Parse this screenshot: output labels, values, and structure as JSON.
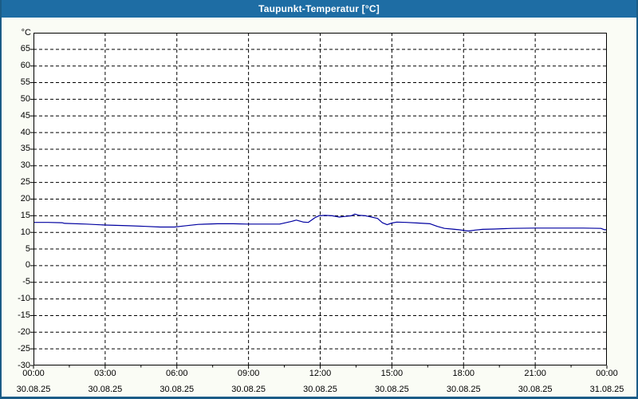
{
  "window": {
    "title": "Taupunkt-Temperatur [°C]"
  },
  "colors": {
    "titlebar": "#1E6DA4",
    "window_border": "#1B5C87",
    "page_background": "#FAFCF5",
    "plot_background": "#FFFFFF",
    "grid": "#000000",
    "series_line": "#0000A0",
    "title_text": "#FFFFFF",
    "axis_text": "#000000"
  },
  "chart_data": {
    "type": "line",
    "title": "Taupunkt-Temperatur [°C]",
    "ylabel": "°C",
    "ylim": [
      -30,
      70
    ],
    "y_tick_step": 5,
    "y_ticks": [
      65,
      60,
      55,
      50,
      45,
      40,
      35,
      30,
      25,
      20,
      15,
      10,
      5,
      0,
      -5,
      -10,
      -15,
      -20,
      -25,
      -30
    ],
    "grid": "dashed",
    "legend": "none",
    "x_axis": {
      "unit": "hours",
      "range_hours": [
        0,
        24
      ],
      "major_tick_hours": 3,
      "minor_tick_hours": 1.5,
      "ticks": [
        {
          "hours": 0,
          "time": "00:00",
          "date": "30.08.25"
        },
        {
          "hours": 3,
          "time": "03:00",
          "date": "30.08.25"
        },
        {
          "hours": 6,
          "time": "06:00",
          "date": "30.08.25"
        },
        {
          "hours": 9,
          "time": "09:00",
          "date": "30.08.25"
        },
        {
          "hours": 12,
          "time": "12:00",
          "date": "30.08.25"
        },
        {
          "hours": 15,
          "time": "15:00",
          "date": "30.08.25"
        },
        {
          "hours": 18,
          "time": "18:00",
          "date": "30.08.25"
        },
        {
          "hours": 21,
          "time": "21:00",
          "date": "30.08.25"
        },
        {
          "hours": 24,
          "time": "00:00",
          "date": "31.08.25"
        }
      ]
    },
    "series": [
      {
        "name": "Taupunkt-Temperatur",
        "unit": "°C",
        "color": "#0000A0",
        "points_hours_value": [
          [
            0.0,
            13.0
          ],
          [
            0.6,
            13.0
          ],
          [
            1.2,
            12.9
          ],
          [
            1.3,
            12.7
          ],
          [
            2.2,
            12.5
          ],
          [
            3.0,
            12.2
          ],
          [
            4.0,
            12.0
          ],
          [
            4.7,
            11.8
          ],
          [
            5.3,
            11.6
          ],
          [
            5.9,
            11.6
          ],
          [
            6.25,
            11.9
          ],
          [
            6.9,
            12.4
          ],
          [
            7.7,
            12.6
          ],
          [
            8.35,
            12.6
          ],
          [
            8.95,
            12.5
          ],
          [
            9.6,
            12.5
          ],
          [
            10.3,
            12.5
          ],
          [
            10.8,
            13.3
          ],
          [
            11.0,
            13.7
          ],
          [
            11.3,
            13.1
          ],
          [
            11.5,
            13.0
          ],
          [
            11.8,
            14.5
          ],
          [
            11.95,
            15.0
          ],
          [
            12.2,
            15.1
          ],
          [
            12.5,
            15.0
          ],
          [
            12.8,
            14.6
          ],
          [
            13.05,
            14.8
          ],
          [
            13.3,
            15.0
          ],
          [
            13.45,
            15.5
          ],
          [
            13.65,
            15.1
          ],
          [
            13.9,
            15.0
          ],
          [
            14.15,
            14.6
          ],
          [
            14.4,
            14.2
          ],
          [
            14.6,
            12.9
          ],
          [
            14.8,
            12.3
          ],
          [
            15.0,
            12.8
          ],
          [
            15.2,
            13.1
          ],
          [
            15.6,
            13.0
          ],
          [
            16.1,
            12.8
          ],
          [
            16.6,
            12.6
          ],
          [
            16.9,
            11.8
          ],
          [
            17.2,
            11.2
          ],
          [
            17.5,
            11.0
          ],
          [
            17.8,
            10.8
          ],
          [
            18.0,
            10.6
          ],
          [
            18.2,
            10.4
          ],
          [
            18.5,
            10.7
          ],
          [
            18.8,
            10.9
          ],
          [
            19.3,
            11.0
          ],
          [
            20.0,
            11.2
          ],
          [
            21.0,
            11.3
          ],
          [
            22.0,
            11.3
          ],
          [
            23.0,
            11.3
          ],
          [
            23.75,
            11.2
          ],
          [
            23.9,
            10.8
          ],
          [
            24.0,
            10.8
          ]
        ]
      }
    ]
  }
}
